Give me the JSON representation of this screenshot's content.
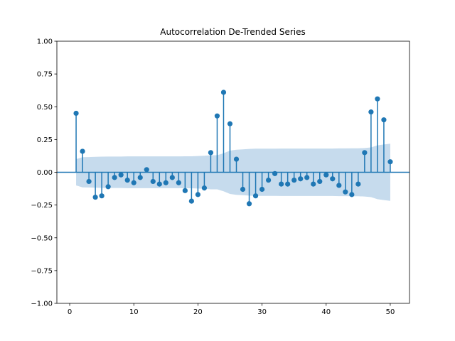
{
  "chart_data": {
    "type": "stem",
    "title": "Autocorrelation De-Trended Series",
    "xlabel": "",
    "ylabel": "",
    "xlim": [
      -2,
      53
    ],
    "ylim": [
      -1.0,
      1.0
    ],
    "xticks": [
      0,
      10,
      20,
      30,
      40,
      50
    ],
    "yticks": [
      -1.0,
      -0.75,
      -0.5,
      -0.25,
      0.0,
      0.25,
      0.5,
      0.75,
      1.0
    ],
    "ytick_labels": [
      "−1.00",
      "−0.75",
      "−0.50",
      "−0.25",
      "0.00",
      "0.25",
      "0.50",
      "0.75",
      "1.00"
    ],
    "xtick_labels": [
      "0",
      "10",
      "20",
      "30",
      "40",
      "50"
    ],
    "grid": false,
    "colors": {
      "stem": "#1f77b4",
      "band": "#c6dbed"
    },
    "lags": [
      1,
      2,
      3,
      4,
      5,
      6,
      7,
      8,
      9,
      10,
      11,
      12,
      13,
      14,
      15,
      16,
      17,
      18,
      19,
      20,
      21,
      22,
      23,
      24,
      25,
      26,
      27,
      28,
      29,
      30,
      31,
      32,
      33,
      34,
      35,
      36,
      37,
      38,
      39,
      40,
      41,
      42,
      43,
      44,
      45,
      46,
      47,
      48,
      49,
      50
    ],
    "values": [
      0.45,
      0.16,
      -0.07,
      -0.19,
      -0.18,
      -0.11,
      -0.04,
      -0.02,
      -0.06,
      -0.08,
      -0.04,
      0.02,
      -0.07,
      -0.09,
      -0.08,
      -0.04,
      -0.08,
      -0.14,
      -0.22,
      -0.17,
      -0.12,
      0.15,
      0.43,
      0.61,
      0.37,
      0.1,
      -0.13,
      -0.24,
      -0.18,
      -0.13,
      -0.06,
      -0.01,
      -0.09,
      -0.09,
      -0.06,
      -0.05,
      -0.04,
      -0.09,
      -0.07,
      -0.02,
      -0.05,
      -0.1,
      -0.15,
      -0.17,
      -0.09,
      0.15,
      0.46,
      0.56,
      0.4,
      0.08
    ],
    "confidence_band": {
      "lags": [
        1,
        2,
        3,
        4,
        5,
        6,
        7,
        8,
        9,
        10,
        11,
        12,
        13,
        14,
        15,
        16,
        17,
        18,
        19,
        20,
        21,
        22,
        23,
        24,
        25,
        26,
        27,
        28,
        29,
        30,
        31,
        32,
        33,
        34,
        35,
        36,
        37,
        38,
        39,
        40,
        41,
        42,
        43,
        44,
        45,
        46,
        47,
        48,
        49,
        50
      ],
      "upper": [
        0.1,
        0.115,
        0.116,
        0.118,
        0.119,
        0.12,
        0.12,
        0.12,
        0.121,
        0.121,
        0.121,
        0.121,
        0.121,
        0.121,
        0.121,
        0.121,
        0.121,
        0.122,
        0.122,
        0.124,
        0.126,
        0.13,
        0.13,
        0.145,
        0.165,
        0.172,
        0.175,
        0.178,
        0.18,
        0.18,
        0.18,
        0.18,
        0.181,
        0.181,
        0.181,
        0.181,
        0.181,
        0.181,
        0.181,
        0.181,
        0.181,
        0.182,
        0.182,
        0.183,
        0.183,
        0.185,
        0.19,
        0.205,
        0.212,
        0.218
      ],
      "lower": [
        -0.1,
        -0.115,
        -0.116,
        -0.118,
        -0.119,
        -0.12,
        -0.12,
        -0.12,
        -0.121,
        -0.121,
        -0.121,
        -0.121,
        -0.121,
        -0.121,
        -0.121,
        -0.121,
        -0.121,
        -0.122,
        -0.122,
        -0.124,
        -0.126,
        -0.13,
        -0.13,
        -0.145,
        -0.165,
        -0.172,
        -0.175,
        -0.178,
        -0.18,
        -0.18,
        -0.18,
        -0.18,
        -0.181,
        -0.181,
        -0.181,
        -0.181,
        -0.181,
        -0.181,
        -0.181,
        -0.181,
        -0.181,
        -0.182,
        -0.182,
        -0.183,
        -0.183,
        -0.185,
        -0.19,
        -0.205,
        -0.212,
        -0.218
      ]
    }
  }
}
